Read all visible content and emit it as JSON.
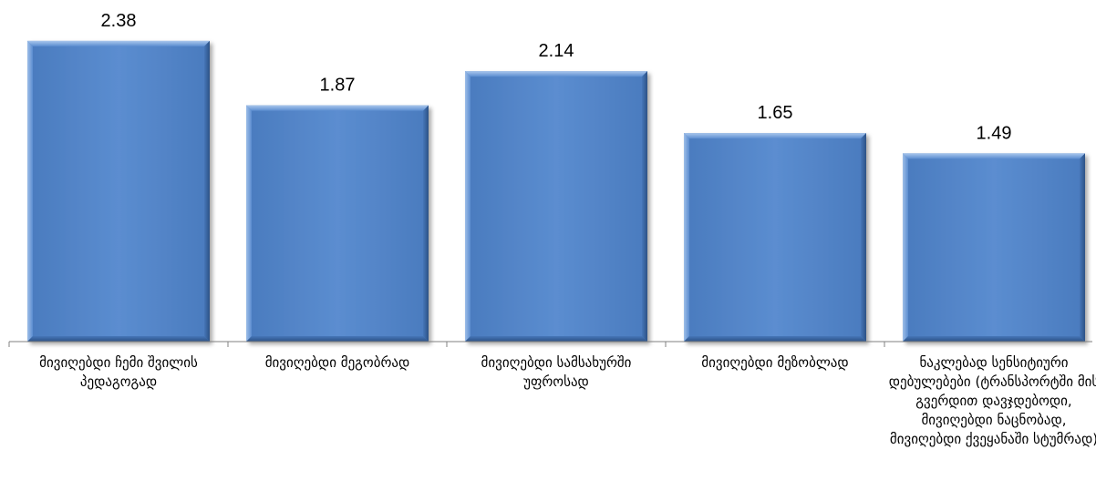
{
  "chart_data": {
    "type": "bar",
    "categories": [
      "მივიღებდი ჩემი შვილის პედაგოგად",
      "მივიღებდი მეგობრად",
      "მივიღებდი სამსახურში უფროსად",
      "მივიღებდი მეზობლად",
      "ნაკლებად სენსიტიური დებულებები (ტრანსპორტში მის გვერდით დავჯდებოდი, მივიღებდი ნაცნობად, მივიღებდი ქვეყანაში სტუმრად)"
    ],
    "values": [
      2.38,
      1.87,
      2.14,
      1.65,
      1.49
    ],
    "value_labels": [
      "2.38",
      "1.87",
      "2.14",
      "1.65",
      "1.49"
    ],
    "ylim": [
      0,
      2.5
    ],
    "grid": false,
    "colors": {
      "bar": "#4F81BD",
      "bar_light": "#8DB3E2",
      "bar_dark": "#2C5286",
      "axis": "#808080"
    }
  }
}
